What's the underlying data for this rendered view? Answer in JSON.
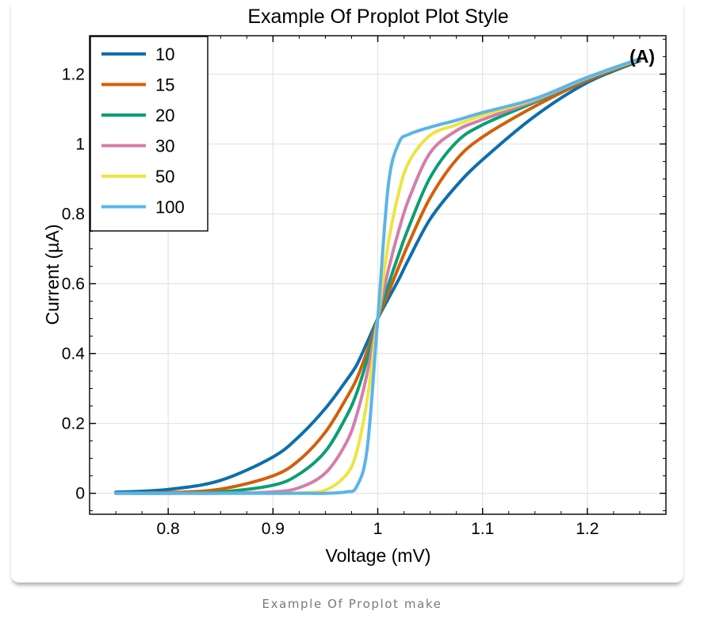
{
  "caption": "Example Of Proplot make",
  "chart_data": {
    "type": "line",
    "title": "Example Of Proplot Plot Style",
    "xlabel": "Voltage (mV)",
    "ylabel": "Current (µA)",
    "panel_label": "(A)",
    "xlim": [
      0.725,
      1.275
    ],
    "ylim": [
      -0.06,
      1.31
    ],
    "x_ticks": [
      0.8,
      0.9,
      1.0,
      1.1,
      1.2
    ],
    "x_tick_labels": [
      "0.8",
      "0.9",
      "1",
      "1.1",
      "1.2"
    ],
    "y_ticks": [
      0,
      0.2,
      0.4,
      0.6,
      0.8,
      1.0,
      1.2
    ],
    "y_tick_labels": [
      "0",
      "0.2",
      "0.4",
      "0.6",
      "0.8",
      "1",
      "1.2"
    ],
    "grid": true,
    "legend_position": "top-left",
    "x": [
      0.75,
      0.8,
      0.85,
      0.9,
      0.925,
      0.95,
      0.97,
      0.98,
      0.99,
      1.0,
      1.01,
      1.02,
      1.03,
      1.05,
      1.075,
      1.1,
      1.15,
      1.2,
      1.25
    ],
    "series": [
      {
        "name": "10",
        "color": "#0c6fad",
        "values": [
          0.003,
          0.011,
          0.037,
          0.104,
          0.163,
          0.243,
          0.323,
          0.368,
          0.433,
          0.5,
          0.557,
          0.612,
          0.673,
          0.785,
          0.88,
          0.955,
          1.08,
          1.176,
          1.238
        ]
      },
      {
        "name": "15",
        "color": "#d35f0a",
        "values": [
          0.0,
          0.002,
          0.012,
          0.05,
          0.095,
          0.175,
          0.272,
          0.328,
          0.408,
          0.5,
          0.574,
          0.648,
          0.719,
          0.846,
          0.955,
          1.02,
          1.108,
          1.182,
          1.24
        ]
      },
      {
        "name": "20",
        "color": "#0c9e73",
        "values": [
          0.0,
          0.0,
          0.004,
          0.023,
          0.055,
          0.12,
          0.22,
          0.288,
          0.385,
          0.5,
          0.596,
          0.684,
          0.765,
          0.904,
          1.005,
          1.055,
          1.12,
          1.186,
          1.241
        ]
      },
      {
        "name": "30",
        "color": "#d37ea8",
        "values": [
          0.0,
          0.0,
          0.0,
          0.004,
          0.016,
          0.058,
          0.145,
          0.225,
          0.345,
          0.5,
          0.638,
          0.752,
          0.845,
          0.975,
          1.038,
          1.07,
          1.124,
          1.188,
          1.242
        ]
      },
      {
        "name": "50",
        "color": "#ede443",
        "values": [
          0.0,
          0.0,
          0.0,
          0.0,
          0.001,
          0.009,
          0.053,
          0.12,
          0.27,
          0.5,
          0.715,
          0.86,
          0.95,
          1.025,
          1.055,
          1.082,
          1.128,
          1.19,
          1.243
        ]
      },
      {
        "name": "100",
        "color": "#5bb4e8",
        "values": [
          0.0,
          0.0,
          0.0,
          0.0,
          0.0,
          0.0,
          0.004,
          0.02,
          0.13,
          0.5,
          0.88,
          1.002,
          1.028,
          1.048,
          1.068,
          1.09,
          1.13,
          1.191,
          1.244
        ]
      }
    ]
  }
}
